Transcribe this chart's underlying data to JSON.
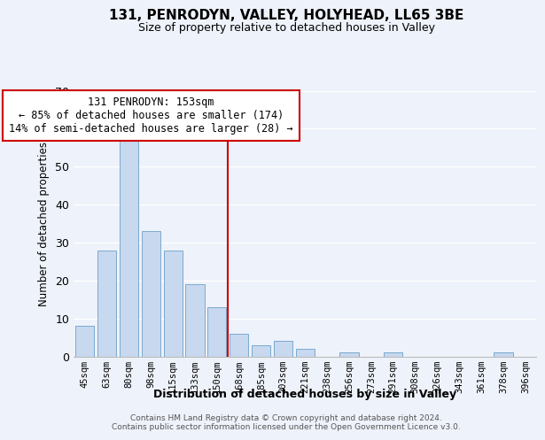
{
  "title": "131, PENRODYN, VALLEY, HOLYHEAD, LL65 3BE",
  "subtitle": "Size of property relative to detached houses in Valley",
  "xlabel": "Distribution of detached houses by size in Valley",
  "ylabel": "Number of detached properties",
  "bar_color": "#c8d8ee",
  "bar_edge_color": "#7aaad0",
  "categories": [
    "45sqm",
    "63sqm",
    "80sqm",
    "98sqm",
    "115sqm",
    "133sqm",
    "150sqm",
    "168sqm",
    "185sqm",
    "203sqm",
    "221sqm",
    "238sqm",
    "256sqm",
    "273sqm",
    "291sqm",
    "308sqm",
    "326sqm",
    "343sqm",
    "361sqm",
    "378sqm",
    "396sqm"
  ],
  "values": [
    8,
    28,
    57,
    33,
    28,
    19,
    13,
    6,
    3,
    4,
    2,
    0,
    1,
    0,
    1,
    0,
    0,
    0,
    0,
    1,
    0
  ],
  "ylim": [
    0,
    70
  ],
  "yticks": [
    0,
    10,
    20,
    30,
    40,
    50,
    60,
    70
  ],
  "vline_x": 6.5,
  "vline_color": "#cc0000",
  "annotation_title": "131 PENRODYN: 153sqm",
  "annotation_line1": "← 85% of detached houses are smaller (174)",
  "annotation_line2": "14% of semi-detached houses are larger (28) →",
  "annotation_box_color": "#ffffff",
  "annotation_box_edge": "#cc0000",
  "footer1": "Contains HM Land Registry data © Crown copyright and database right 2024.",
  "footer2": "Contains public sector information licensed under the Open Government Licence v3.0.",
  "background_color": "#eef2fa",
  "grid_color": "#ffffff"
}
